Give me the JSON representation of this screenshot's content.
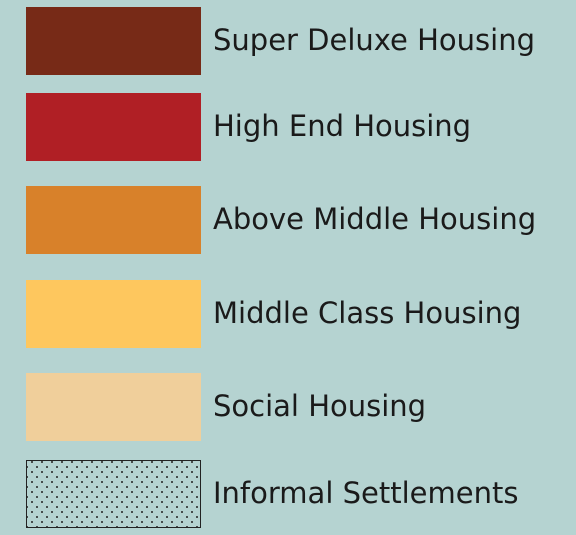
{
  "legend": {
    "items": [
      {
        "label": "Super Deluxe Housing",
        "color": "#772a17"
      },
      {
        "label": "High End Housing",
        "color": "#b01f25"
      },
      {
        "label": "Above Middle Housing",
        "color": "#d8812a"
      },
      {
        "label": "Middle Class Housing",
        "color": "#fec75e"
      },
      {
        "label": "Social Housing",
        "color": "#f0cf9b"
      },
      {
        "label": "Informal Settlements",
        "pattern": "dots"
      }
    ]
  }
}
